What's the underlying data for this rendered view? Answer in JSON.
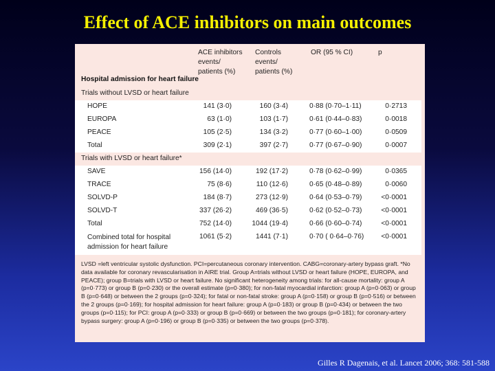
{
  "slide": {
    "title": "Effect of ACE inhibitors on main outcomes",
    "citation": "Gilles R Dagenais, et al. Lancet 2006; 368: 581-588"
  },
  "table": {
    "columns": {
      "ace": "ACE inhibitors events/ patients (%)",
      "ace_lines": [
        "ACE inhibitors",
        "events/",
        "patients (%)"
      ],
      "controls_lines": [
        "Controls",
        "events/",
        "patients (%)"
      ],
      "or": "OR (95 % CI)",
      "p": "p"
    },
    "section_title": "Hospital admission for heart failure",
    "groups": [
      {
        "label": "Trials without LVSD or heart failure",
        "rows": [
          {
            "name": "HOPE",
            "ace": "141 (3·0)",
            "controls": "160 (3·4)",
            "or": "0·88 (0·70–1·11)",
            "p": "0·2713"
          },
          {
            "name": "EUROPA",
            "ace": "63 (1·0)",
            "controls": "103 (1·7)",
            "or": "0·61 (0·44–0·83)",
            "p": "0·0018"
          },
          {
            "name": "PEACE",
            "ace": "105 (2·5)",
            "controls": "134 (3·2)",
            "or": "0·77 (0·60–1·00)",
            "p": "0·0509"
          },
          {
            "name": "Total",
            "ace": "309 (2·1)",
            "controls": "397 (2·7)",
            "or": "0·77 (0·67–0·90)",
            "p": "0·0007"
          }
        ]
      },
      {
        "label": "Trials with LVSD or heart failure*",
        "rows": [
          {
            "name": "SAVE",
            "ace": "156 (14·0)",
            "controls": "192 (17·2)",
            "or": "0·78 (0·62–0·99)",
            "p": "0·0365"
          },
          {
            "name": "TRACE",
            "ace": "75 (8·6)",
            "controls": "110 (12·6)",
            "or": "0·65 (0·48–0·89)",
            "p": "0·0060"
          },
          {
            "name": "SOLVD-P",
            "ace": "184 (8·7)",
            "controls": "273 (12·9)",
            "or": "0·64 (0·53–0·79)",
            "p": "<0·0001"
          },
          {
            "name": "SOLVD-T",
            "ace": "337 (26·2)",
            "controls": "469 (36·5)",
            "or": "0·62 (0·52–0·73)",
            "p": "<0·0001"
          },
          {
            "name": "Total",
            "ace": "752 (14·0)",
            "controls": "1044 (19·4)",
            "or": "0·66 (0·60–0·74)",
            "p": "<0·0001"
          }
        ]
      }
    ],
    "combined": {
      "name_line1": "Combined total for hospital",
      "name_line2": "admission for heart failure",
      "ace": "1061 (5·2)",
      "controls": "1441 (7·1)",
      "or": "0·70 ( 0·64–0·76)",
      "p": "<0·0001"
    },
    "footnote": "LVSD =left ventricular systolic dysfunction. PCI=percutaneous coronary intervention. CABG=coronary-artery bypass graft. *No data available for coronary revascularisation in AIRE trial. Group A=trials without LVSD or heart failure (HOPE, EUROPA, and PEACE); group B=trials with LVSD or heart failure. No significant heterogeneity among trials: for all-cause mortality: group A (p=0·773) or group B (p=0·230) or the overall estimate (p=0·380); for non-fatal myocardial infarction: group A (p=0·063) or group B (p=0·648) or between the 2 groups (p=0·324); for fatal or non-fatal stroke: group A (p=0·158) or group B (p=0·516) or between the 2 groups (p=0·169); for hospital admission for heart failure: group A (p=0·183) or group B (p=0·434) or between the two groups (p=0·115); for PCI: group A (p=0·333) or group B (p=0·669) or between the two groups (p=0·181); for coronary-artery bypass surgery: group A (p=0·196) or group B (p=0·335) or between the two groups (p=0·378)."
  }
}
